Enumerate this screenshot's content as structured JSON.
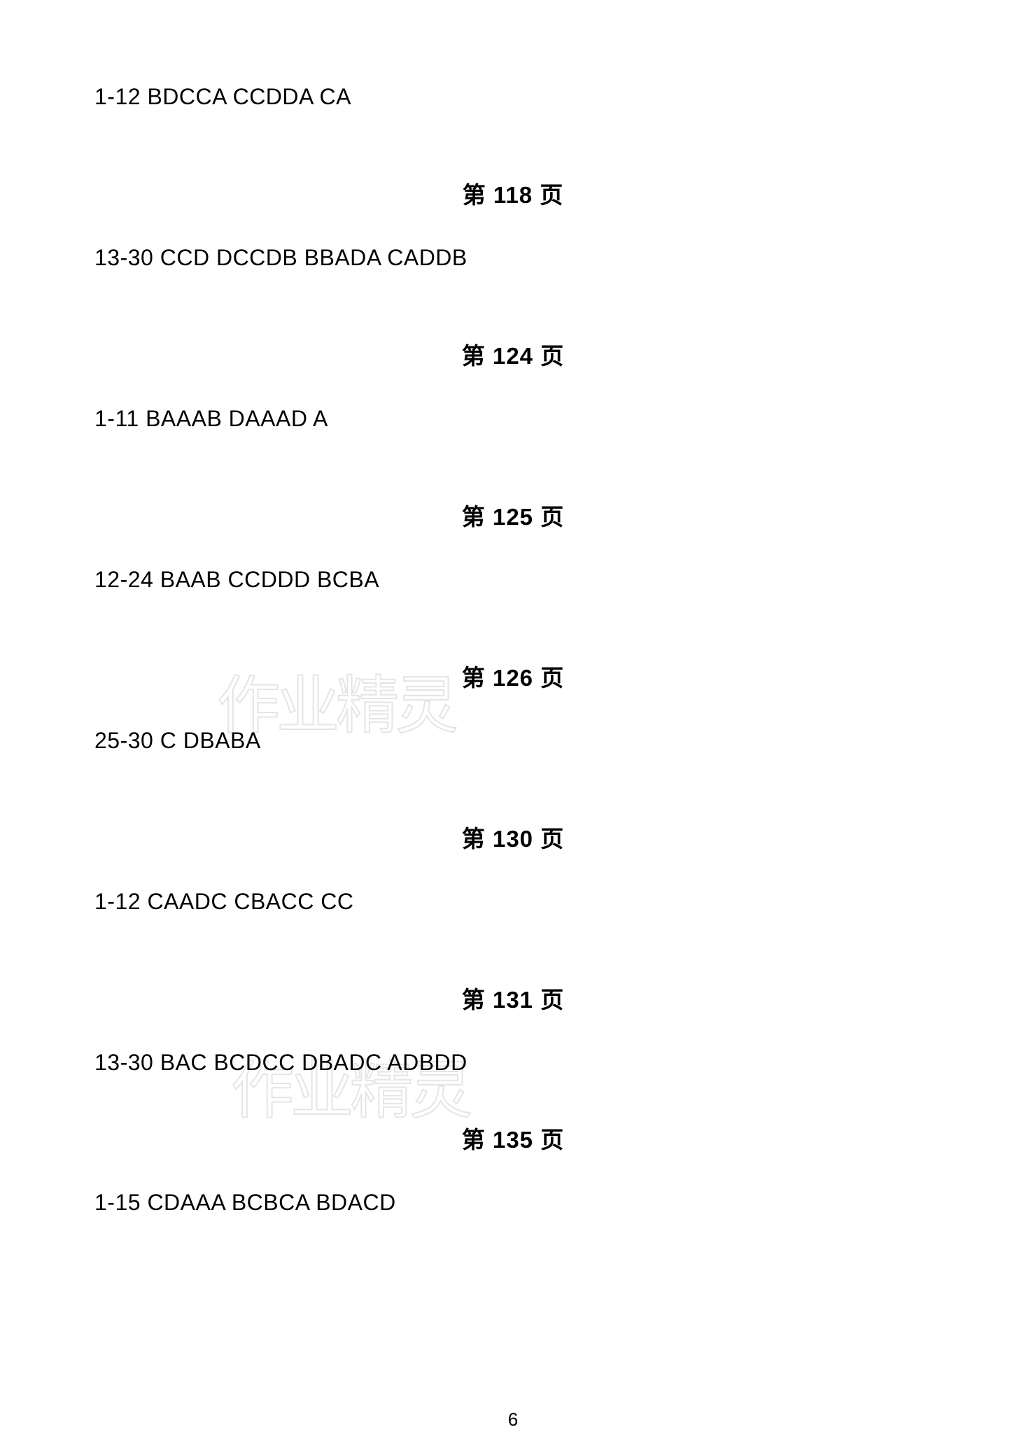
{
  "sections": [
    {
      "heading": null,
      "answer": "1-12 BDCCA CCDDA CA"
    },
    {
      "heading": "第 118 页",
      "answer": "13-30 CCD DCCDB BBADA CADDB"
    },
    {
      "heading": "第 124 页",
      "answer": "1-11 BAAAB DAAAD A"
    },
    {
      "heading": "第 125 页",
      "answer": "12-24 BAAB CCDDD BCBA"
    },
    {
      "heading": "第 126 页",
      "answer": "25-30 C DBABA"
    },
    {
      "heading": "第 130 页",
      "answer": "1-12 CAADC CBACC CC"
    },
    {
      "heading": "第 131 页",
      "answer": "13-30 BAC BCDCC DBADC ADBDD"
    },
    {
      "heading": "第 135 页",
      "answer": "1-15 CDAAA BCBCA BDACD",
      "tight": true
    }
  ],
  "pageNumber": "6",
  "watermarkText": "作业精灵",
  "colors": {
    "text": "#000000",
    "background": "#ffffff",
    "watermark": "#cccccc"
  },
  "typography": {
    "bodyFontSize": 32,
    "headingFontSize": 33,
    "pageNumberFontSize": 26,
    "watermarkFontSize": 90
  }
}
